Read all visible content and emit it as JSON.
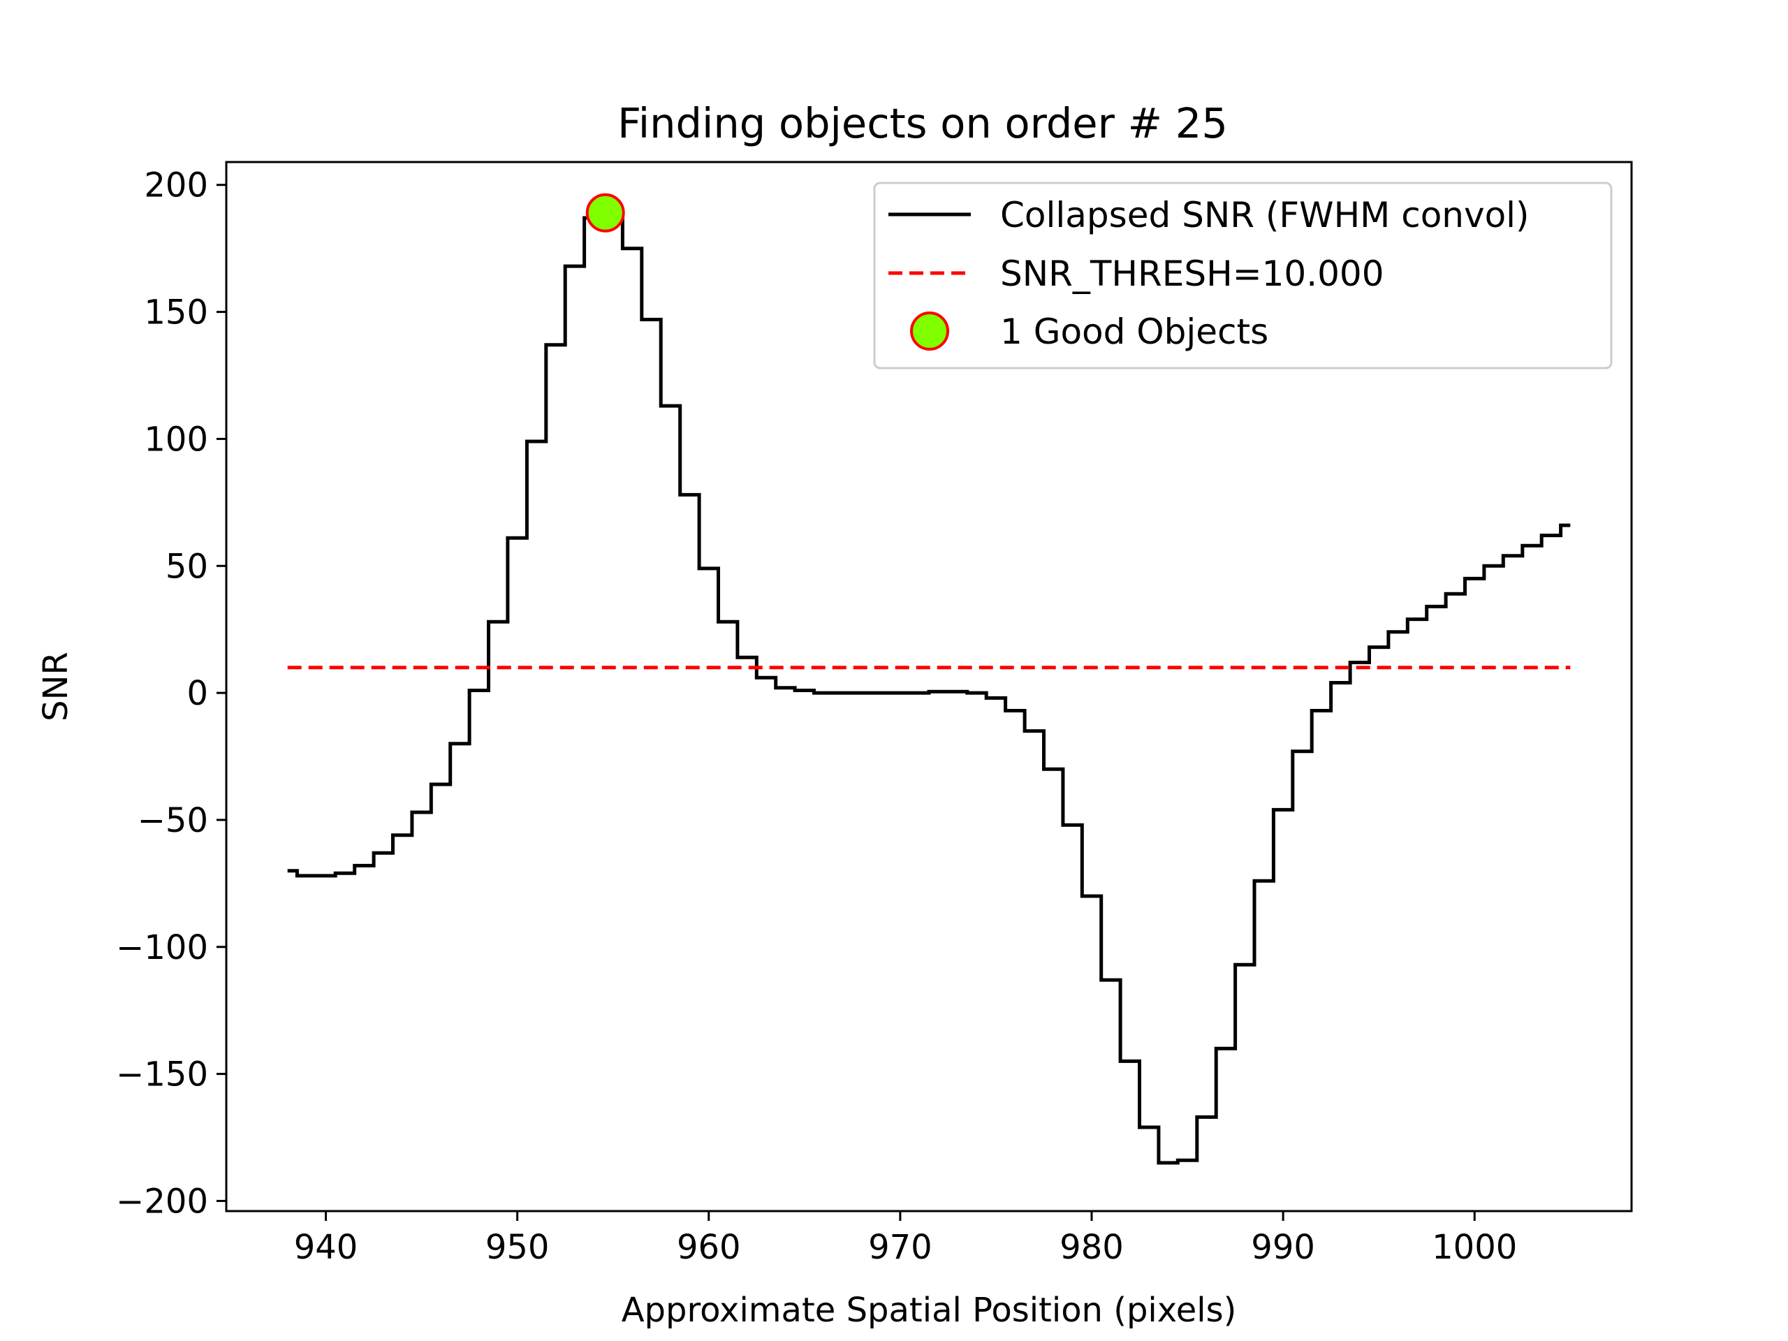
{
  "chart_data": {
    "type": "line",
    "title": "Finding objects on order # 25",
    "xlabel": "Approximate Spatial Position (pixels)",
    "ylabel": "SNR",
    "xlim": [
      934.8,
      1008.2
    ],
    "ylim": [
      -204,
      209
    ],
    "xticks": [
      940,
      950,
      960,
      970,
      980,
      990,
      1000
    ],
    "yticks": [
      -200,
      -150,
      -100,
      -50,
      0,
      50,
      100,
      150,
      200
    ],
    "xtick_labels": [
      "940",
      "950",
      "960",
      "970",
      "980",
      "990",
      "1000"
    ],
    "ytick_labels": [
      "−200",
      "−150",
      "−100",
      "−50",
      "0",
      "50",
      "100",
      "150",
      "200"
    ],
    "grid": false,
    "legend_position": "top-right",
    "series": [
      {
        "name": "Collapsed SNR (FWHM convol)",
        "style": "steps-mid",
        "color": "#000000",
        "x": [
          938,
          939,
          940,
          941,
          942,
          943,
          944,
          945,
          946,
          947,
          948,
          949,
          950,
          951,
          952,
          953,
          954,
          955,
          956,
          957,
          958,
          959,
          960,
          961,
          962,
          963,
          964,
          965,
          966,
          967,
          968,
          969,
          970,
          971,
          972,
          973,
          974,
          975,
          976,
          977,
          978,
          979,
          980,
          981,
          982,
          983,
          984,
          985,
          986,
          987,
          988,
          989,
          990,
          991,
          992,
          993,
          994,
          995,
          996,
          997,
          998,
          999,
          1000,
          1001,
          1002,
          1003,
          1004,
          1005
        ],
        "y": [
          -70,
          -72,
          -72,
          -71,
          -68,
          -63,
          -56,
          -47,
          -36,
          -20,
          1,
          28,
          61,
          99,
          137,
          168,
          187,
          189,
          175,
          147,
          113,
          78,
          49,
          28,
          14,
          6,
          2,
          1,
          0,
          0,
          0,
          0,
          0,
          0,
          0.5,
          0.5,
          0,
          -2,
          -7,
          -15,
          -30,
          -52,
          -80,
          -113,
          -145,
          -171,
          -185,
          -184,
          -167,
          -140,
          -107,
          -74,
          -46,
          -23,
          -7,
          4,
          12,
          18,
          24,
          29,
          34,
          39,
          45,
          50,
          54,
          58,
          62,
          66
        ]
      },
      {
        "name": "SNR_THRESH=10.000",
        "style": "dashed",
        "color": "#ff0000",
        "x": [
          938,
          1005
        ],
        "y": [
          10,
          10
        ]
      },
      {
        "name": "1 Good Objects",
        "style": "marker",
        "color": "#7fff00",
        "edge_color": "#ff0000",
        "x": [
          954.6
        ],
        "y": [
          189
        ]
      }
    ]
  }
}
